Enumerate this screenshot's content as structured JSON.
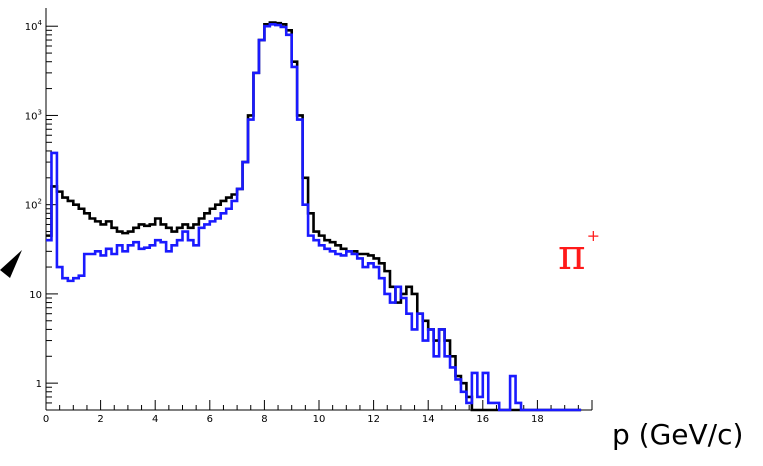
{
  "chart_data": {
    "type": "histogram",
    "xlabel": "p (GeV/c)",
    "annotation": "π",
    "annotation_charge": "+",
    "annotation_color": "#ff1a1a",
    "xlim": [
      0,
      20
    ],
    "ylim": [
      0.5,
      16000
    ],
    "yscale": "log",
    "grid": false,
    "x_ticks": [
      0,
      2,
      4,
      6,
      8,
      10,
      12,
      14,
      16,
      18
    ],
    "y_ticks": [
      {
        "base": "1",
        "exp": "",
        "value": 1
      },
      {
        "base": "10",
        "exp": "",
        "value": 10
      },
      {
        "base": "10",
        "exp": "2",
        "value": 100
      },
      {
        "base": "10",
        "exp": "3",
        "value": 1000
      },
      {
        "base": "10",
        "exp": "4",
        "value": 10000
      }
    ],
    "bin_edges": [
      0,
      0.2,
      0.4,
      0.6,
      0.8,
      1.0,
      1.2,
      1.4,
      1.6,
      1.8,
      2.0,
      2.2,
      2.4,
      2.6,
      2.8,
      3.0,
      3.2,
      3.4,
      3.6,
      3.8,
      4.0,
      4.2,
      4.4,
      4.6,
      4.8,
      5.0,
      5.2,
      5.4,
      5.6,
      5.8,
      6.0,
      6.2,
      6.4,
      6.6,
      6.8,
      7.0,
      7.2,
      7.4,
      7.6,
      7.8,
      8.0,
      8.2,
      8.4,
      8.6,
      8.8,
      9.0,
      9.2,
      9.4,
      9.6,
      9.8,
      10.0,
      10.2,
      10.4,
      10.6,
      10.8,
      11.0,
      11.2,
      11.4,
      11.6,
      11.8,
      12.0,
      12.2,
      12.4,
      12.6,
      12.8,
      13.0,
      13.2,
      13.4,
      13.6,
      13.8,
      14.0,
      14.2,
      14.4,
      14.6,
      14.8,
      15.0,
      15.2,
      15.4,
      15.6,
      15.8,
      16.0,
      16.2,
      16.4,
      16.6,
      16.8,
      17.0,
      17.2,
      17.4,
      17.6,
      17.8,
      18.0,
      18.2,
      18.4,
      18.6,
      18.8,
      19.0,
      19.2,
      19.4,
      19.6
    ],
    "series": [
      {
        "color": "#000000",
        "values": [
          45,
          160,
          140,
          120,
          110,
          100,
          90,
          80,
          70,
          65,
          60,
          65,
          55,
          50,
          48,
          50,
          55,
          60,
          58,
          60,
          70,
          60,
          55,
          50,
          55,
          60,
          55,
          60,
          70,
          80,
          90,
          100,
          110,
          120,
          130,
          150,
          300,
          1000,
          3000,
          7000,
          10500,
          11000,
          10800,
          10500,
          9000,
          4000,
          1000,
          200,
          80,
          50,
          45,
          40,
          38,
          35,
          32,
          30,
          30,
          28,
          28,
          27,
          25,
          22,
          18,
          12,
          8,
          10,
          12,
          10,
          6,
          5,
          4,
          3,
          4,
          3,
          2,
          1.2,
          1.0,
          0.7,
          0,
          0,
          0,
          0,
          0,
          0,
          0,
          0,
          0,
          0,
          0,
          0,
          0,
          0,
          0,
          0,
          0,
          0,
          0,
          0
        ]
      },
      {
        "color": "#1a1aff",
        "values": [
          40,
          380,
          20,
          15,
          14,
          15,
          16,
          28,
          28,
          30,
          27,
          32,
          28,
          35,
          30,
          35,
          38,
          32,
          33,
          35,
          40,
          38,
          30,
          35,
          40,
          50,
          40,
          35,
          55,
          60,
          65,
          70,
          80,
          90,
          110,
          150,
          300,
          900,
          3000,
          7000,
          10000,
          10500,
          10300,
          9800,
          8000,
          3500,
          900,
          100,
          45,
          40,
          35,
          32,
          30,
          28,
          27,
          30,
          28,
          25,
          20,
          22,
          20,
          15,
          10,
          8,
          12,
          9,
          6,
          4,
          6,
          3,
          4,
          2,
          4,
          2,
          1.5,
          1.1,
          0.8,
          0.6,
          1.3,
          0.7,
          1.3,
          0.6,
          0.6,
          0,
          0,
          1.2,
          0.6,
          0,
          0,
          0,
          0,
          0,
          0,
          0,
          0,
          0,
          0,
          0
        ]
      }
    ]
  }
}
